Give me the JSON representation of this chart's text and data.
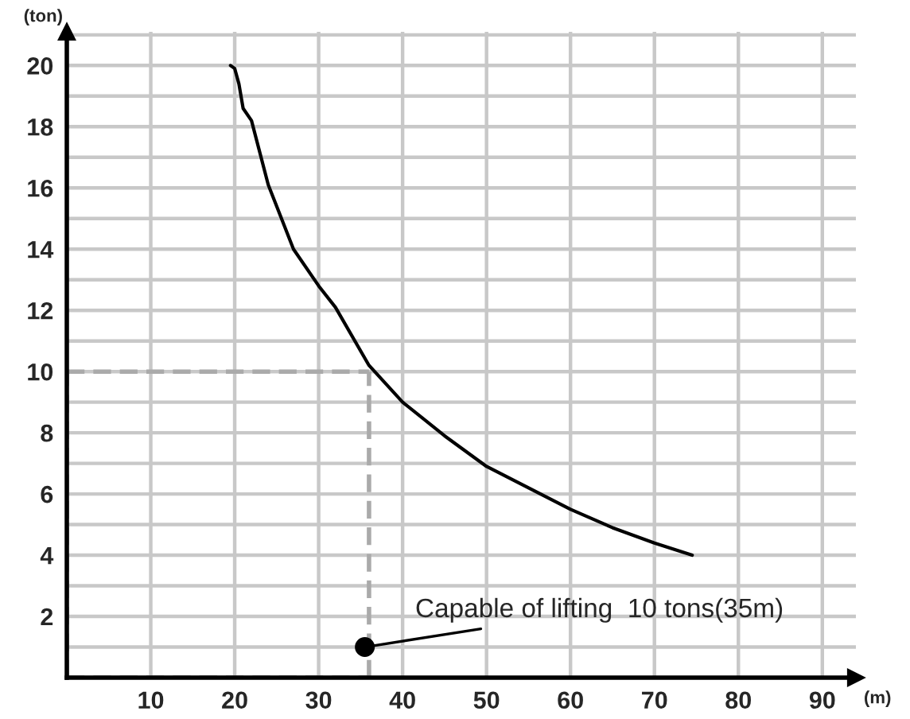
{
  "chart_data": {
    "type": "line",
    "xlabel": "(m)",
    "ylabel": "(ton)",
    "x": [
      19.5,
      20,
      20.5,
      21,
      22,
      24,
      27,
      30,
      32,
      36,
      40,
      45,
      50,
      55,
      60,
      65,
      70,
      74.5
    ],
    "series": [
      {
        "color": "#000000",
        "values": [
          20,
          19.9,
          19.4,
          18.6,
          18.2,
          16.1,
          14,
          12.8,
          12.1,
          10.2,
          9,
          7.9,
          6.9,
          6.2,
          5.5,
          4.9,
          4.4,
          4
        ]
      }
    ],
    "xlim": [
      0,
      94
    ],
    "ylim": [
      0,
      21.1
    ],
    "xticks": [
      10,
      20,
      30,
      40,
      50,
      60,
      70,
      80,
      90
    ],
    "yticks": [
      {
        "value": 1,
        "label": null
      },
      2,
      {
        "value": 3,
        "label": null
      },
      4,
      {
        "value": 5,
        "label": null
      },
      6,
      {
        "value": 7,
        "label": null
      },
      8,
      {
        "value": 9,
        "label": null
      },
      10,
      {
        "value": 11,
        "label": null
      },
      12,
      {
        "value": 13,
        "label": null
      },
      14,
      {
        "value": 15,
        "label": null
      },
      16,
      {
        "value": 17,
        "label": null
      },
      18,
      {
        "value": 19,
        "label": null
      },
      20,
      {
        "value": 21,
        "label": null
      }
    ],
    "grid": true,
    "marker": "none",
    "line_style": "solid",
    "ref_lines": [
      {
        "axis": "x",
        "value": 36,
        "color": "#aaaaaa",
        "line_style": "dashed"
      },
      {
        "axis": "y",
        "value": 10,
        "color": "#aaaaaa",
        "line_style": "dashed"
      }
    ],
    "annotations": [
      {
        "text": "Capable of lifting  10 tons(35m)",
        "x": 35.5,
        "y": 1
      }
    ]
  }
}
